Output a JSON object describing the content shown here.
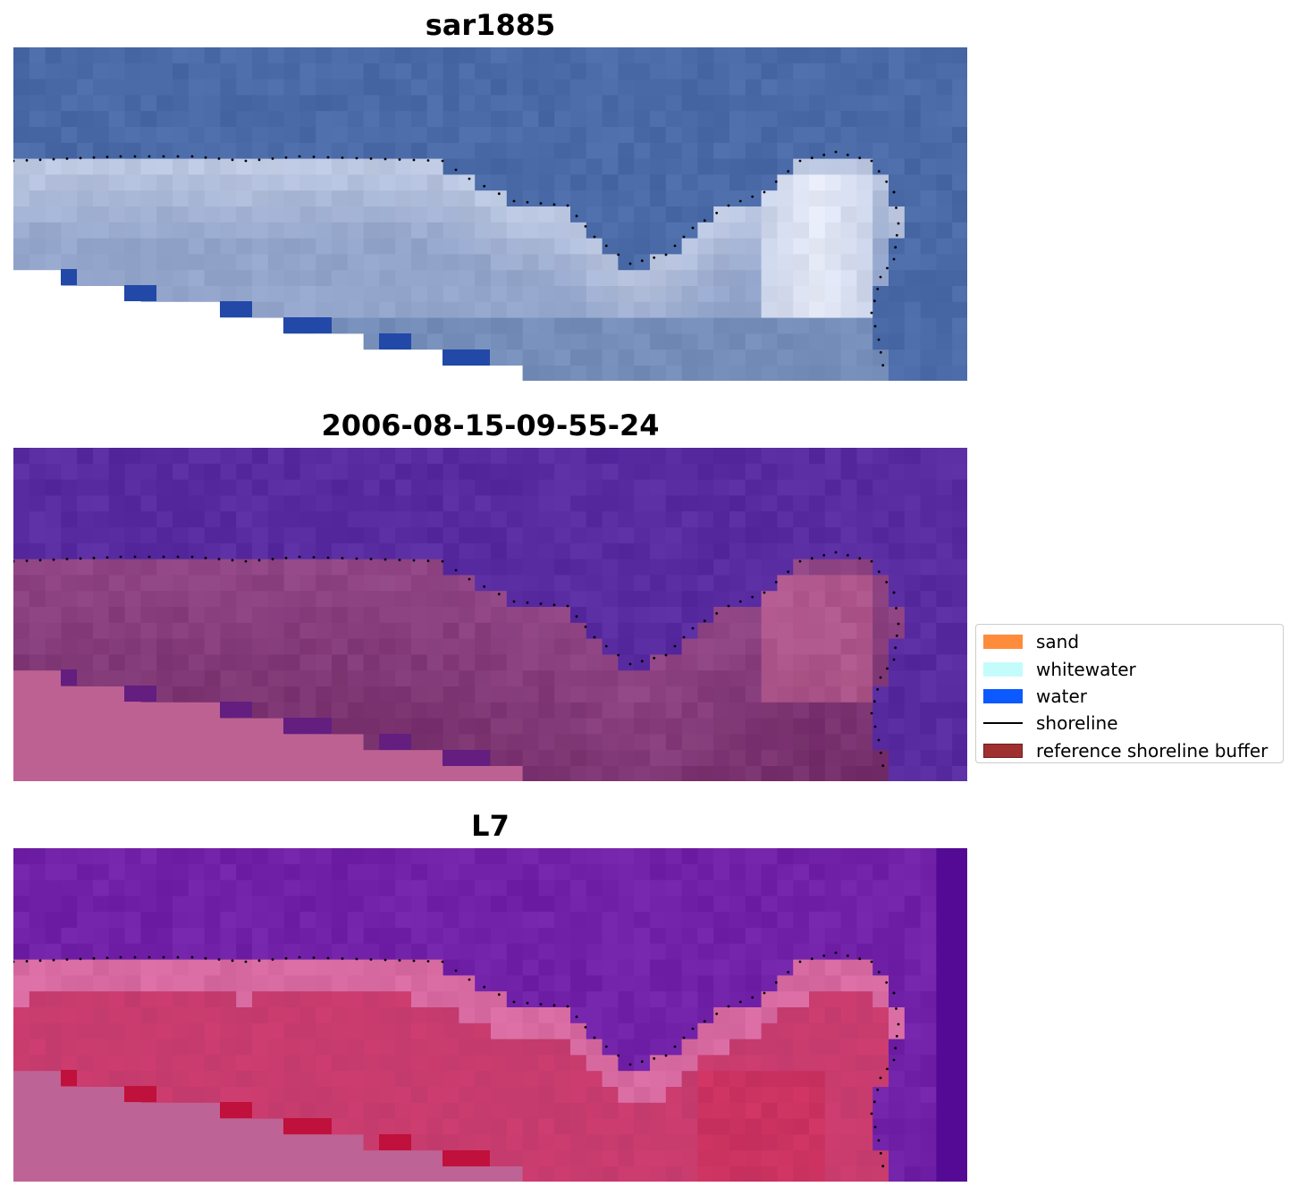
{
  "panels": [
    {
      "title": "sar1885",
      "style": "rgb",
      "colors": {
        "sea": "#4262a0",
        "land": "#8c9ec4",
        "white": "#eef0f8",
        "blue": "#2248a8",
        "nodata": "#ffffff"
      },
      "title_y": 8,
      "img_y": 53
    },
    {
      "title": "2006-08-15-09-55-24",
      "style": "classified",
      "colors": {
        "sea": "#51249a",
        "land": "#8a3e7e",
        "bright": "#c0608f",
        "blue": "#631e80",
        "nodata": "#bd6193"
      },
      "title_y": 456,
      "img_y": 501
    },
    {
      "title": "L7",
      "style": "index",
      "colors": {
        "sea": "#6a1aa0",
        "land": "#c23a6c",
        "pale": "#d0649a",
        "blue": "#c0103c",
        "nodata": "#be6395"
      },
      "title_y": 904,
      "img_y": 949
    }
  ],
  "legend": {
    "items": [
      {
        "label": "sand",
        "type": "patch",
        "color": "#ff8c3a",
        "edge": "#ff8c3a"
      },
      {
        "label": "whitewater",
        "type": "patch",
        "color": "#c4fcfc",
        "edge": "#c4fcfc"
      },
      {
        "label": "water",
        "type": "patch",
        "color": "#0a5aff",
        "edge": "#0a5aff"
      },
      {
        "label": "shoreline",
        "type": "line",
        "color": "#000000"
      },
      {
        "label": "reference shoreline buffer",
        "type": "patch",
        "color": "#a03030",
        "edge": "#6e1e1e"
      }
    ]
  }
}
